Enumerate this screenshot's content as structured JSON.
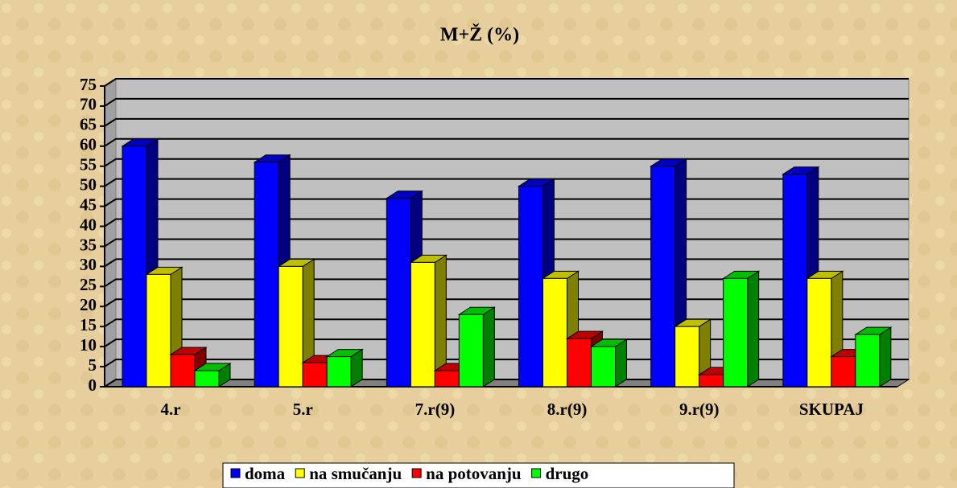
{
  "chart_data": {
    "type": "bar3d",
    "title": "M+Ž (%)",
    "categories": [
      "4.r",
      "5.r",
      "7.r(9)",
      "8.r(9)",
      "9.r(9)",
      "SKUPAJ"
    ],
    "series": [
      {
        "name": "doma",
        "color": "#0000ff",
        "values": [
          60,
          56,
          47,
          50,
          55,
          53
        ]
      },
      {
        "name": "na smučanju",
        "color": "#ffff00",
        "values": [
          28,
          30,
          31,
          27,
          15,
          27
        ]
      },
      {
        "name": "na potovanju",
        "color": "#ff0000",
        "values": [
          8,
          6,
          4,
          12,
          3,
          7.5
        ]
      },
      {
        "name": "drugo",
        "color": "#00ff00",
        "values": [
          4,
          7.5,
          18,
          10,
          27,
          13
        ]
      }
    ],
    "ylim": [
      0,
      75
    ],
    "yticks": [
      0,
      5,
      10,
      15,
      20,
      25,
      30,
      35,
      40,
      45,
      50,
      55,
      60,
      65,
      70,
      75
    ],
    "grid": true,
    "legend": "bottom"
  }
}
